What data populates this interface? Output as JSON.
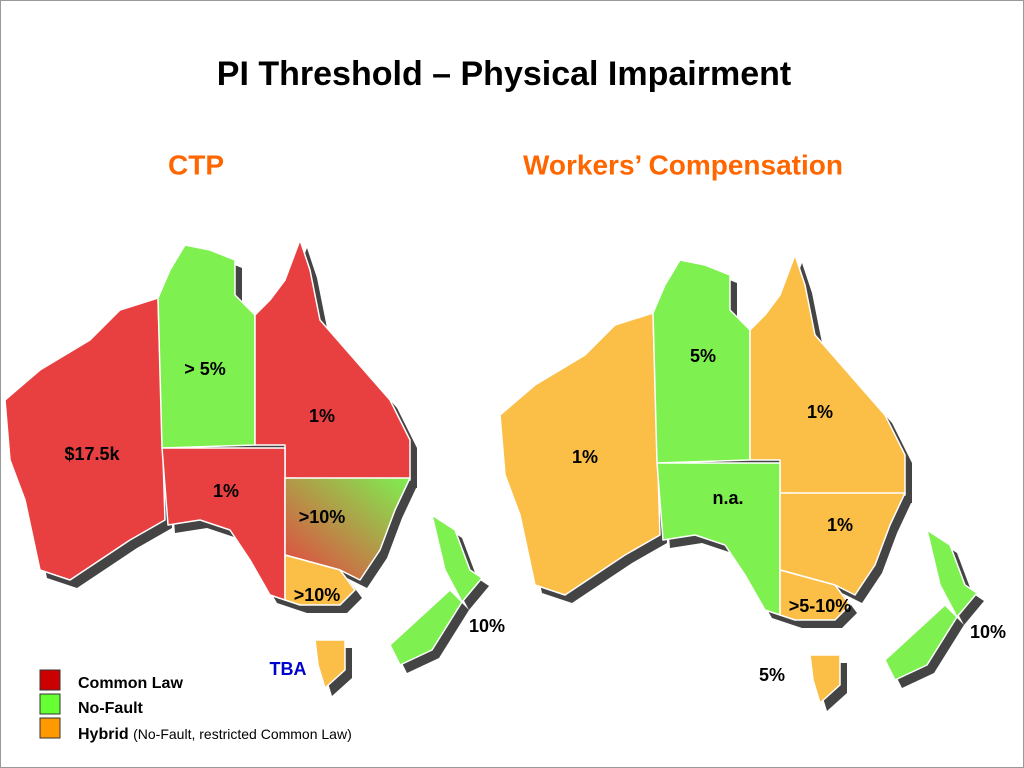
{
  "title": "PI Threshold – Physical Impairment",
  "maps": [
    {
      "heading": "CTP",
      "labels": [
        "> 5%",
        "1%",
        "$17.5k",
        "1%",
        ">10%",
        ">10%",
        "10%",
        "TBA"
      ]
    },
    {
      "heading": "Workers’ Compensation",
      "labels": [
        "5%",
        "1%",
        "1%",
        "n.a.",
        "1%",
        ">5-10%",
        "10%",
        "5%"
      ]
    }
  ],
  "legend": [
    {
      "label": "Common Law"
    },
    {
      "label": "No-Fault"
    },
    {
      "label": "Hybrid",
      "note": "(No-Fault, restricted Common Law)"
    }
  ]
}
